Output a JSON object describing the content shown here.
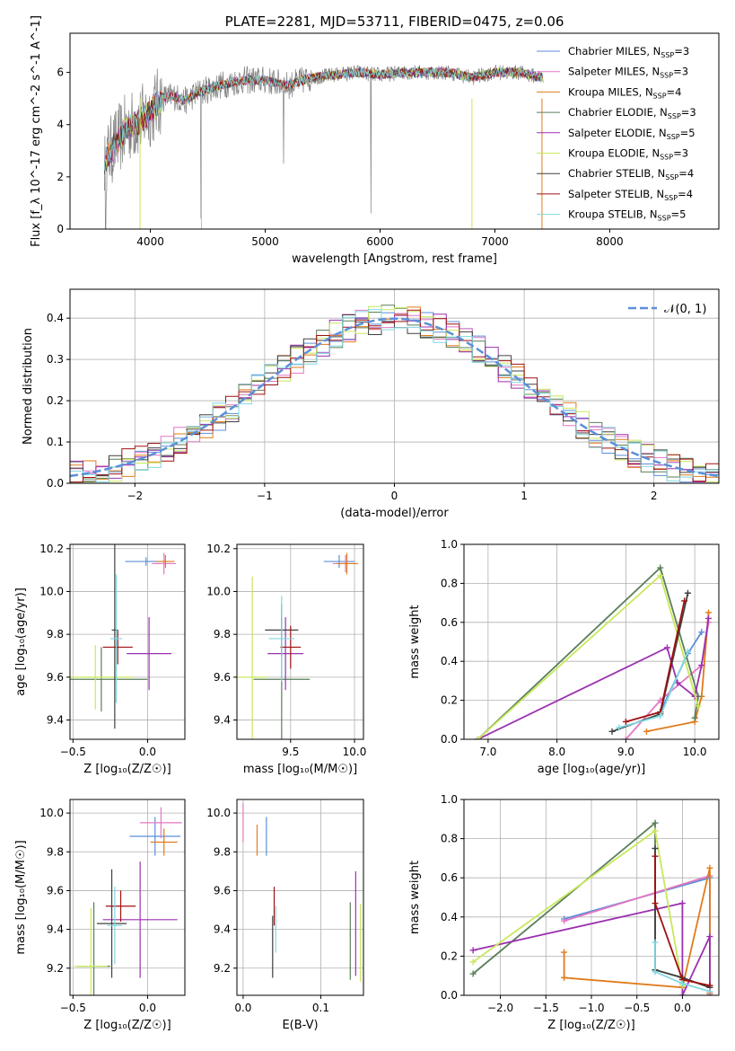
{
  "chart_data": [
    {
      "id": "spectrum",
      "type": "line",
      "title": "PLATE=2281, MJD=53711, FIBERID=0475, z=0.06",
      "xlabel": "wavelength [Angstrom, rest frame]",
      "ylabel": "Flux [f_λ 10^-17 erg cm^-2 s^-1 A^-1]",
      "xlim": [
        3300,
        8950
      ],
      "ylim": [
        0,
        7.5
      ],
      "xticks": [
        4000,
        5000,
        6000,
        7000,
        8000
      ],
      "yticks": [
        0,
        2,
        4,
        6
      ],
      "data_range": [
        3600,
        7420
      ],
      "legend_position": "right",
      "legend": [
        {
          "label": "Chabrier MILES, N_SSP=3",
          "color": "#5b8fd9"
        },
        {
          "label": "Salpeter MILES, N_SSP=3",
          "color": "#e377c2"
        },
        {
          "label": "Kroupa MILES, N_SSP=4",
          "color": "#e07b1a"
        },
        {
          "label": "Chabrier ELODIE, N_SSP=3",
          "color": "#5a7f5a"
        },
        {
          "label": "Salpeter ELODIE, N_SSP=5",
          "color": "#9b30b0"
        },
        {
          "label": "Kroupa ELODIE, N_SSP=3",
          "color": "#c8e85a"
        },
        {
          "label": "Chabrier STELIB, N_SSP=4",
          "color": "#404040"
        },
        {
          "label": "Salpeter STELIB, N_SSP=4",
          "color": "#a01010"
        },
        {
          "label": "Kroupa STELIB, N_SSP=5",
          "color": "#80d8e0"
        }
      ],
      "continuum": [
        [
          3600,
          2.6
        ],
        [
          3700,
          3.3
        ],
        [
          3800,
          3.9
        ],
        [
          3900,
          4.1
        ],
        [
          4000,
          4.5
        ],
        [
          4100,
          5.0
        ],
        [
          4200,
          5.1
        ],
        [
          4300,
          4.9
        ],
        [
          4400,
          5.2
        ],
        [
          4600,
          5.5
        ],
        [
          4800,
          5.7
        ],
        [
          5000,
          5.7
        ],
        [
          5200,
          5.5
        ],
        [
          5400,
          5.8
        ],
        [
          5600,
          5.9
        ],
        [
          5800,
          6.0
        ],
        [
          6000,
          5.9
        ],
        [
          6200,
          6.0
        ],
        [
          6400,
          6.0
        ],
        [
          6600,
          6.0
        ],
        [
          6800,
          5.8
        ],
        [
          7000,
          6.0
        ],
        [
          7200,
          6.0
        ],
        [
          7420,
          5.8
        ]
      ],
      "observed_color": "#808080"
    },
    {
      "id": "residuals",
      "type": "line",
      "xlabel": "(data-model)/error",
      "ylabel": "Normed distribution",
      "xlim": [
        -2.5,
        2.5
      ],
      "ylim": [
        0,
        0.47
      ],
      "xticks": [
        -2,
        -1,
        0,
        1,
        2
      ],
      "yticks": [
        0.0,
        0.1,
        0.2,
        0.3,
        0.4
      ],
      "grid": true,
      "legend_label": "𝒩(0, 1)",
      "legend_position": "top-right",
      "gaussian_color": "#5b8fd9",
      "bin_width": 0.1
    },
    {
      "id": "z-age",
      "type": "scatter",
      "xlabel": "Z [log₁₀(Z/Z☉)]",
      "ylabel": "age  [log₁₀(age/yr)]",
      "xlim": [
        -0.52,
        0.25
      ],
      "ylim": [
        9.31,
        10.22
      ],
      "xticks": [
        -0.5,
        0.0
      ],
      "yticks": [
        9.4,
        9.6,
        9.8,
        10.0,
        10.2
      ],
      "grid": true,
      "points": [
        {
          "color": "#5b8fd9",
          "x": -0.01,
          "y": 10.14,
          "xerr": 0.14,
          "yerr": 0.02
        },
        {
          "color": "#e377c2",
          "x": 0.11,
          "y": 10.13,
          "xerr": 0.08,
          "yerr": 0.05
        },
        {
          "color": "#e07b1a",
          "x": 0.12,
          "y": 10.14,
          "xerr": 0.06,
          "yerr": 0.03
        },
        {
          "color": "#5a7f5a",
          "x": -0.31,
          "y": 9.59,
          "xerr": 0.31,
          "yerr": 0.15
        },
        {
          "color": "#9b30b0",
          "x": 0.01,
          "y": 9.71,
          "xerr": 0.15,
          "yerr": 0.17
        },
        {
          "color": "#c8e85a",
          "x": -0.35,
          "y": 9.6,
          "xerr": 0.25,
          "yerr": 0.15
        },
        {
          "color": "#404040",
          "x": -0.22,
          "y": 9.82,
          "xerr": 0.02,
          "yerr": 0.46
        },
        {
          "color": "#a01010",
          "x": -0.2,
          "y": 9.74,
          "xerr": 0.1,
          "yerr": 0.08
        },
        {
          "color": "#80d8e0",
          "x": -0.21,
          "y": 9.78,
          "xerr": 0.04,
          "yerr": 0.3
        }
      ]
    },
    {
      "id": "mass-age",
      "type": "scatter",
      "xlabel": "mass [log₁₀(M/M☉)]",
      "ylabel": "",
      "xlim": [
        9.08,
        10.07
      ],
      "ylim": [
        9.31,
        10.22
      ],
      "xticks": [
        9.5,
        10.0
      ],
      "yticks": [
        9.4,
        9.6,
        9.8,
        10.0,
        10.2
      ],
      "grid": true,
      "points": [
        {
          "color": "#5b8fd9",
          "x": 9.88,
          "y": 10.14,
          "xerr": 0.12,
          "yerr": 0.03
        },
        {
          "color": "#e377c2",
          "x": 9.93,
          "y": 10.13,
          "xerr": 0.1,
          "yerr": 0.04
        },
        {
          "color": "#e07b1a",
          "x": 9.94,
          "y": 10.13,
          "xerr": 0.08,
          "yerr": 0.05
        },
        {
          "color": "#5a7f5a",
          "x": 9.43,
          "y": 9.59,
          "xerr": 0.22,
          "yerr": 0.3
        },
        {
          "color": "#9b30b0",
          "x": 9.46,
          "y": 9.71,
          "xerr": 0.14,
          "yerr": 0.17
        },
        {
          "color": "#c8e85a",
          "x": 9.2,
          "y": 9.6,
          "xerr": 0.12,
          "yerr": 0.47
        },
        {
          "color": "#404040",
          "x": 9.43,
          "y": 9.82,
          "xerr": 0.13,
          "yerr": 0.12
        },
        {
          "color": "#a01010",
          "x": 9.5,
          "y": 9.74,
          "xerr": 0.08,
          "yerr": 0.1
        },
        {
          "color": "#80d8e0",
          "x": 9.43,
          "y": 9.78,
          "xerr": 0.1,
          "yerr": 0.2
        }
      ]
    },
    {
      "id": "age-weight",
      "type": "line",
      "xlabel": "age  [log₁₀(age/yr)]",
      "ylabel": "mass weight",
      "xlim": [
        6.65,
        10.35
      ],
      "ylim": [
        0.0,
        1.0
      ],
      "xticks": [
        7,
        8,
        9,
        10
      ],
      "yticks": [
        0.0,
        0.2,
        0.4,
        0.6,
        0.8,
        1.0
      ],
      "grid": true,
      "series": [
        {
          "color": "#5b8fd9",
          "x": [
            9.5,
            9.9,
            10.1
          ],
          "y": [
            0.14,
            0.44,
            0.55
          ]
        },
        {
          "color": "#e377c2",
          "x": [
            9.0,
            9.5,
            10.1,
            10.2
          ],
          "y": [
            0.0,
            0.2,
            0.38,
            0.6
          ]
        },
        {
          "color": "#e07b1a",
          "x": [
            9.3,
            10.0,
            10.1,
            10.2
          ],
          "y": [
            0.04,
            0.09,
            0.22,
            0.65
          ]
        },
        {
          "color": "#5a7f5a",
          "x": [
            6.85,
            9.5,
            10.05,
            10.0
          ],
          "y": [
            0.0,
            0.88,
            0.22,
            0.11
          ]
        },
        {
          "color": "#9b30b0",
          "x": [
            6.85,
            9.6,
            9.75,
            10.0,
            10.1,
            10.2
          ],
          "y": [
            0.0,
            0.47,
            0.29,
            0.22,
            0.38,
            0.62
          ]
        },
        {
          "color": "#c8e85a",
          "x": [
            6.85,
            9.5,
            10.05
          ],
          "y": [
            0.0,
            0.84,
            0.17
          ]
        },
        {
          "color": "#404040",
          "x": [
            8.8,
            9.5,
            9.9
          ],
          "y": [
            0.04,
            0.13,
            0.75
          ]
        },
        {
          "color": "#a01010",
          "x": [
            9.0,
            9.5,
            9.85
          ],
          "y": [
            0.09,
            0.14,
            0.71
          ]
        },
        {
          "color": "#80d8e0",
          "x": [
            8.9,
            9.5,
            9.9
          ],
          "y": [
            0.06,
            0.12,
            0.45
          ]
        }
      ]
    },
    {
      "id": "z-mass",
      "type": "scatter",
      "xlabel": "Z [log₁₀(Z/Z☉)]",
      "ylabel": "mass [log₁₀(M/M☉)]",
      "xlim": [
        -0.52,
        0.25
      ],
      "ylim": [
        9.06,
        10.07
      ],
      "xticks": [
        -0.5,
        0.0
      ],
      "yticks": [
        9.2,
        9.4,
        9.6,
        9.8,
        10.0
      ],
      "grid": true,
      "points": [
        {
          "color": "#5b8fd9",
          "x": 0.05,
          "y": 9.88,
          "xerr": 0.17,
          "yerr": 0.1
        },
        {
          "color": "#e377c2",
          "x": 0.09,
          "y": 9.95,
          "xerr": 0.14,
          "yerr": 0.08
        },
        {
          "color": "#e07b1a",
          "x": 0.11,
          "y": 9.85,
          "xerr": 0.09,
          "yerr": 0.07
        },
        {
          "color": "#5a7f5a",
          "x": -0.36,
          "y": 9.21,
          "xerr": 0.11,
          "yerr": 0.33
        },
        {
          "color": "#9b30b0",
          "x": -0.05,
          "y": 9.45,
          "xerr": 0.25,
          "yerr": 0.3
        },
        {
          "color": "#c8e85a",
          "x": -0.38,
          "y": 9.21,
          "xerr": 0.11,
          "yerr": 0.3
        },
        {
          "color": "#404040",
          "x": -0.24,
          "y": 9.43,
          "xerr": 0.1,
          "yerr": 0.28
        },
        {
          "color": "#a01010",
          "x": -0.18,
          "y": 9.52,
          "xerr": 0.1,
          "yerr": 0.08
        },
        {
          "color": "#80d8e0",
          "x": -0.22,
          "y": 9.42,
          "xerr": 0.05,
          "yerr": 0.2
        }
      ]
    },
    {
      "id": "ebv-mass",
      "type": "scatter",
      "xlabel": "E(B-V)",
      "ylabel": "",
      "xlim": [
        -0.008,
        0.155
      ],
      "ylim": [
        9.06,
        10.07
      ],
      "xticks": [
        0.0,
        0.1
      ],
      "yticks": [
        9.2,
        9.4,
        9.6,
        9.8,
        10.0
      ],
      "grid": true,
      "points": [
        {
          "color": "#5b8fd9",
          "x": 0.03,
          "y": 9.88,
          "xerr": 0,
          "yerr": 0.1
        },
        {
          "color": "#e377c2",
          "x": 0.0,
          "y": 9.95,
          "xerr": 0,
          "yerr": 0.1
        },
        {
          "color": "#e07b1a",
          "x": 0.018,
          "y": 9.86,
          "xerr": 0,
          "yerr": 0.08
        },
        {
          "color": "#5a7f5a",
          "x": 0.138,
          "y": 9.34,
          "xerr": 0,
          "yerr": 0.2
        },
        {
          "color": "#9b30b0",
          "x": 0.145,
          "y": 9.43,
          "xerr": 0,
          "yerr": 0.27
        },
        {
          "color": "#c8e85a",
          "x": 0.151,
          "y": 9.33,
          "xerr": 0,
          "yerr": 0.2
        },
        {
          "color": "#404040",
          "x": 0.038,
          "y": 9.31,
          "xerr": 0,
          "yerr": 0.16
        },
        {
          "color": "#a01010",
          "x": 0.04,
          "y": 9.52,
          "xerr": 0,
          "yerr": 0.1
        },
        {
          "color": "#80d8e0",
          "x": 0.042,
          "y": 9.4,
          "xerr": 0,
          "yerr": 0.12
        }
      ]
    },
    {
      "id": "z-weight",
      "type": "line",
      "xlabel": "Z [log₁₀(Z/Z☉)]",
      "ylabel": "mass weight",
      "xlim": [
        -2.4,
        0.4
      ],
      "ylim": [
        0.0,
        1.0
      ],
      "xticks": [
        -2.0,
        -1.5,
        -1.0,
        -0.5,
        0.0
      ],
      "yticks": [
        0.0,
        0.2,
        0.4,
        0.6,
        0.8,
        1.0
      ],
      "grid": true,
      "series": [
        {
          "color": "#5b8fd9",
          "x": [
            -1.3,
            0.3,
            0.3
          ],
          "y": [
            0.39,
            0.6,
            0.05
          ]
        },
        {
          "color": "#e377c2",
          "x": [
            -1.3,
            0.3,
            0.3
          ],
          "y": [
            0.38,
            0.61,
            0.01
          ]
        },
        {
          "color": "#e07b1a",
          "x": [
            -1.3,
            -1.3,
            0.0,
            0.3,
            0.3
          ],
          "y": [
            0.22,
            0.09,
            0.04,
            0.65,
            0.01
          ]
        },
        {
          "color": "#5a7f5a",
          "x": [
            -2.3,
            -0.3,
            -0.3,
            0.0,
            0.3
          ],
          "y": [
            0.11,
            0.88,
            0.13,
            0.09,
            0.04
          ]
        },
        {
          "color": "#9b30b0",
          "x": [
            -2.3,
            0.0,
            0.0,
            0.3,
            0.3
          ],
          "y": [
            0.23,
            0.47,
            0.0,
            0.3,
            0.0
          ]
        },
        {
          "color": "#c8e85a",
          "x": [
            -2.3,
            -0.3,
            0.0
          ],
          "y": [
            0.17,
            0.84,
            0.05
          ]
        },
        {
          "color": "#404040",
          "x": [
            -0.3,
            -0.3,
            0.0,
            0.3
          ],
          "y": [
            0.75,
            0.13,
            0.09,
            0.04
          ]
        },
        {
          "color": "#a01010",
          "x": [
            -0.3,
            -0.3,
            0.0,
            0.3
          ],
          "y": [
            0.71,
            0.47,
            0.08,
            0.05
          ]
        },
        {
          "color": "#80d8e0",
          "x": [
            -0.3,
            -0.3,
            0.0,
            0.3
          ],
          "y": [
            0.27,
            0.12,
            0.06,
            0.02
          ]
        }
      ]
    }
  ]
}
